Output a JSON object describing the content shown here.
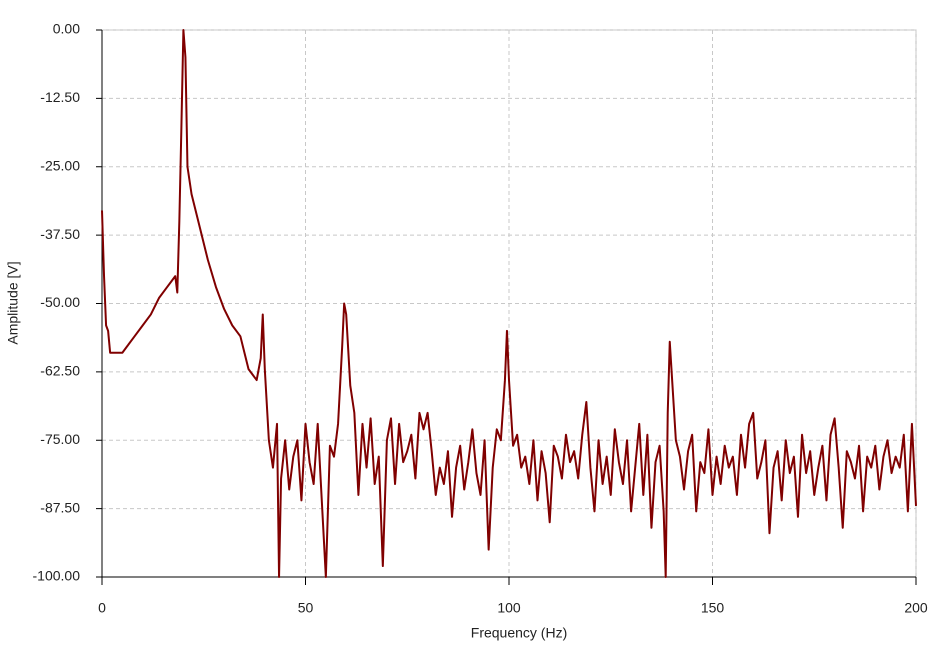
{
  "chart_data": {
    "type": "line",
    "xlabel": "Frequency (Hz)",
    "ylabel": "Amplitude [V]",
    "xlim": [
      0,
      200
    ],
    "xticks": [
      0,
      50,
      100,
      150,
      200
    ],
    "ylim": [
      -100,
      0
    ],
    "yticks": [
      {
        "value": 0,
        "label": "0.00"
      },
      {
        "value": -12.5,
        "label": "-12.50"
      },
      {
        "value": -25,
        "label": "-25.00"
      },
      {
        "value": -37.5,
        "label": "-37.50"
      },
      {
        "value": -50,
        "label": "-50.00"
      },
      {
        "value": -62.5,
        "label": "-62.50"
      },
      {
        "value": -75,
        "label": "-75.00"
      },
      {
        "value": -87.5,
        "label": "-87.50"
      },
      {
        "value": -100,
        "label": "-100.00"
      }
    ],
    "grid": true,
    "color": "#800000",
    "x": [
      0,
      0.5,
      1,
      1.5,
      2,
      3,
      4,
      5,
      6,
      8,
      10,
      12,
      14,
      16,
      17,
      18,
      18.5,
      19,
      19.5,
      20,
      20.5,
      21,
      22,
      24,
      26,
      28,
      30,
      32,
      34,
      35,
      36,
      37,
      38,
      39,
      39.5,
      40,
      41,
      42,
      43,
      43.5,
      44,
      45,
      46,
      47,
      48,
      49,
      50,
      51,
      52,
      53,
      54,
      55,
      56,
      57,
      58,
      59,
      59.5,
      60,
      61,
      62,
      63,
      64,
      65,
      66,
      67,
      68,
      69,
      70,
      71,
      72,
      73,
      74,
      75,
      76,
      77,
      78,
      79,
      80,
      81,
      82,
      83,
      84,
      85,
      86,
      87,
      88,
      89,
      90,
      91,
      92,
      93,
      94,
      95,
      96,
      97,
      98,
      99,
      99.5,
      100,
      101,
      102,
      103,
      104,
      105,
      106,
      107,
      108,
      109,
      110,
      111,
      112,
      113,
      114,
      115,
      116,
      117,
      118,
      119,
      120,
      121,
      122,
      123,
      124,
      125,
      126,
      127,
      128,
      129,
      130,
      131,
      132,
      133,
      134,
      135,
      136,
      137,
      138,
      138.5,
      139,
      139.5,
      140,
      141,
      142,
      143,
      144,
      145,
      146,
      147,
      148,
      149,
      150,
      151,
      152,
      153,
      154,
      155,
      156,
      157,
      158,
      159,
      160,
      161,
      162,
      163,
      164,
      165,
      166,
      167,
      168,
      169,
      170,
      171,
      172,
      173,
      174,
      175,
      176,
      177,
      178,
      179,
      180,
      181,
      182,
      183,
      184,
      185,
      186,
      187,
      188,
      189,
      190,
      191,
      192,
      193,
      194,
      195,
      196,
      197,
      198,
      199,
      200
    ],
    "values": [
      -33,
      -45,
      -54,
      -55,
      -59,
      -59,
      -59,
      -59,
      -58,
      -56,
      -54,
      -52,
      -49,
      -47,
      -46,
      -45,
      -48,
      -35,
      -18,
      0,
      -5,
      -25,
      -30,
      -36,
      -42,
      -47,
      -51,
      -54,
      -56,
      -59,
      -62,
      -63,
      -64,
      -60,
      -52,
      -62,
      -75,
      -80,
      -72,
      -100,
      -82,
      -75,
      -84,
      -78,
      -75,
      -86,
      -72,
      -79,
      -83,
      -72,
      -86,
      -100,
      -76,
      -78,
      -72,
      -58,
      -50,
      -52,
      -65,
      -70,
      -85,
      -72,
      -80,
      -71,
      -83,
      -78,
      -98,
      -75,
      -71,
      -83,
      -72,
      -79,
      -77,
      -74,
      -82,
      -70,
      -73,
      -70,
      -77,
      -85,
      -80,
      -83,
      -77,
      -89,
      -80,
      -76,
      -84,
      -79,
      -73,
      -81,
      -85,
      -75,
      -95,
      -80,
      -73,
      -75,
      -64,
      -55,
      -64,
      -76,
      -74,
      -80,
      -78,
      -83,
      -75,
      -86,
      -77,
      -81,
      -90,
      -76,
      -78,
      -82,
      -74,
      -79,
      -77,
      -82,
      -74,
      -68,
      -80,
      -88,
      -75,
      -83,
      -78,
      -85,
      -73,
      -79,
      -83,
      -75,
      -88,
      -80,
      -72,
      -85,
      -74,
      -91,
      -79,
      -76,
      -88,
      -100,
      -70,
      -57,
      -63,
      -75,
      -78,
      -84,
      -77,
      -74,
      -88,
      -79,
      -81,
      -73,
      -85,
      -78,
      -83,
      -76,
      -80,
      -78,
      -85,
      -74,
      -80,
      -72,
      -70,
      -82,
      -79,
      -75,
      -92,
      -80,
      -77,
      -86,
      -75,
      -81,
      -78,
      -89,
      -74,
      -81,
      -77,
      -85,
      -80,
      -76,
      -86,
      -74,
      -71,
      -80,
      -91,
      -77,
      -79,
      -82,
      -76,
      -88,
      -78,
      -80,
      -76,
      -84,
      -78,
      -75,
      -81,
      -78,
      -80,
      -74,
      -88,
      -72,
      -87
    ]
  }
}
